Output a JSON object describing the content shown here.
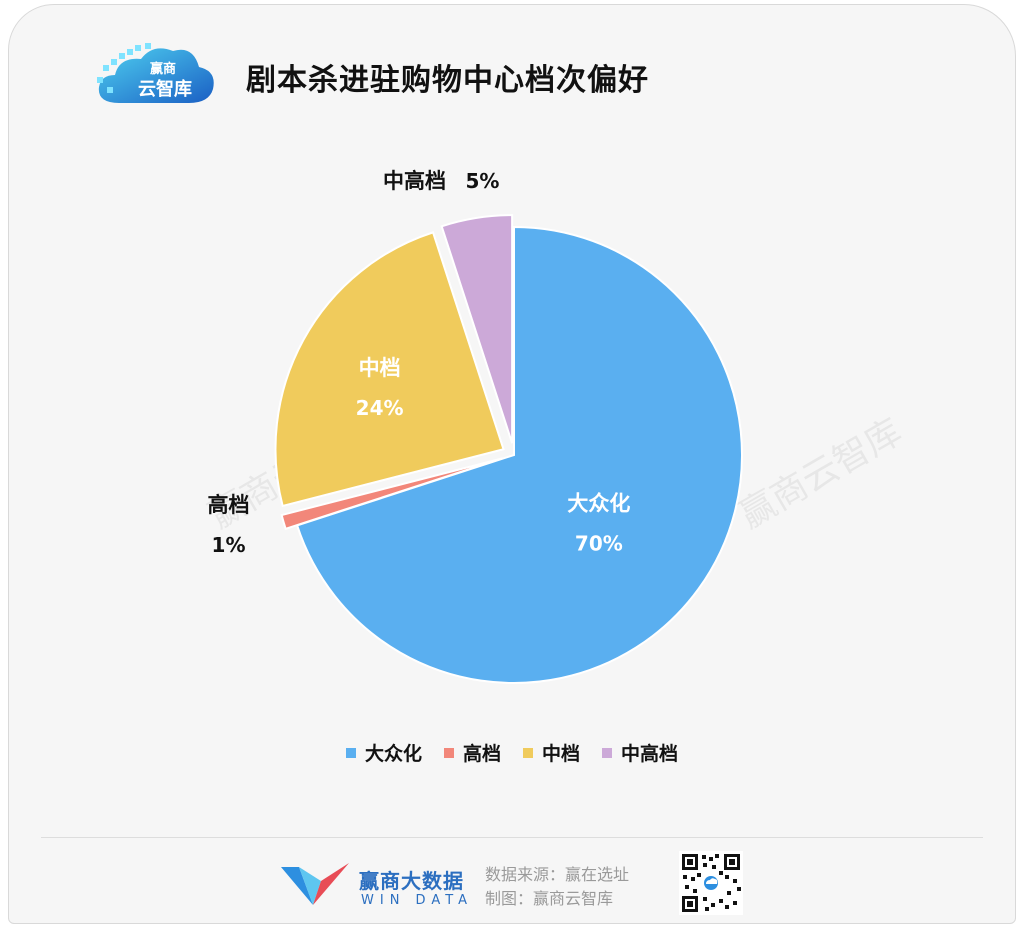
{
  "header": {
    "title": "剧本杀进驻购物中心档次偏好",
    "logo_text_top": "赢商",
    "logo_text_bottom": "云智库"
  },
  "watermark": "赢商云智库",
  "chart_data": {
    "type": "pie",
    "title": "剧本杀进驻购物中心档次偏好",
    "slices": [
      {
        "label": "大众化",
        "value": 70,
        "display": "70%",
        "color": "#5aaff0"
      },
      {
        "label": "高档",
        "value": 1,
        "display": "1%",
        "color": "#f2877a"
      },
      {
        "label": "中档",
        "value": 24,
        "display": "24%",
        "color": "#f0cb5c"
      },
      {
        "label": "中高档",
        "value": 5,
        "display": "5%",
        "color": "#cca9d8"
      }
    ],
    "legend_position": "bottom"
  },
  "legend": [
    {
      "label": "大众化",
      "color": "#5aaff0"
    },
    {
      "label": "高档",
      "color": "#f2877a"
    },
    {
      "label": "中档",
      "color": "#f0cb5c"
    },
    {
      "label": "中高档",
      "color": "#cca9d8"
    }
  ],
  "footer": {
    "brand_name": "赢商大数据",
    "brand_sub": "WIN DATA",
    "source_line": "数据来源：赢在选址",
    "made_by_line": "制图：赢商云智库"
  }
}
